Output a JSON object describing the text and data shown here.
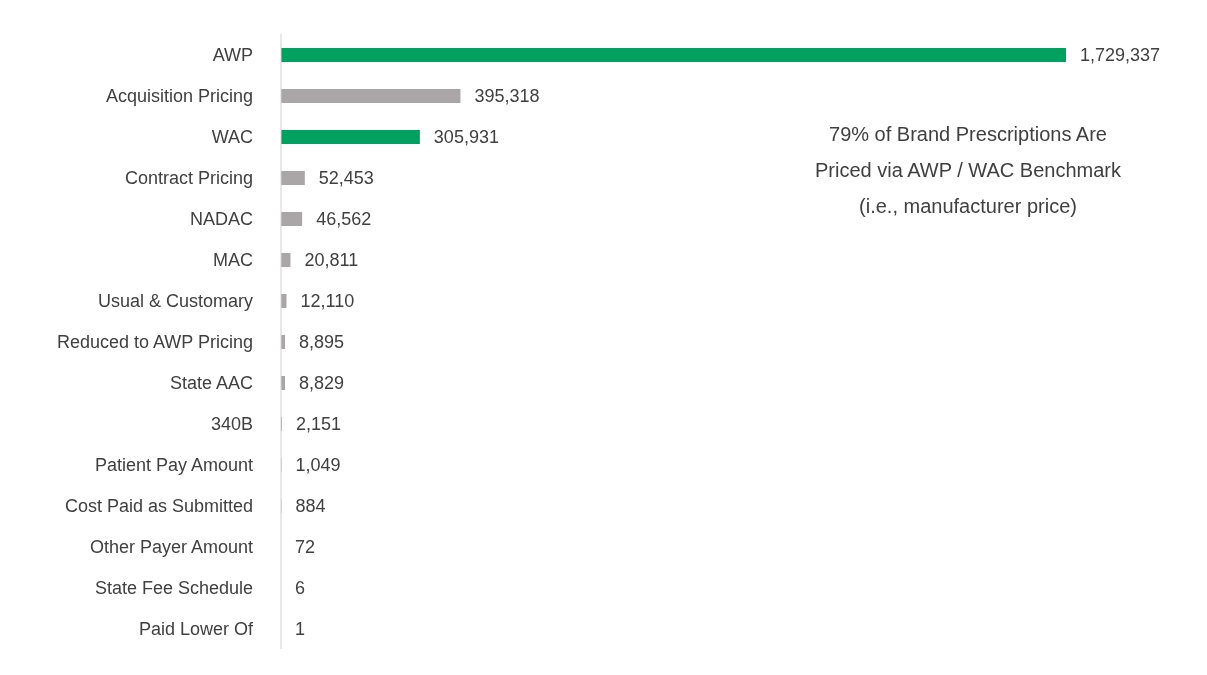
{
  "chart_data": {
    "type": "bar",
    "orientation": "horizontal",
    "categories": [
      "AWP",
      "Acquisition Pricing",
      "WAC",
      "Contract Pricing",
      "NADAC",
      "MAC",
      "Usual & Customary",
      "Reduced to AWP Pricing",
      "State AAC",
      "340B",
      "Patient Pay Amount",
      "Cost Paid as Submitted",
      "Other Payer Amount",
      "State Fee Schedule",
      "Paid Lower Of"
    ],
    "values": [
      1729337,
      395318,
      305931,
      52453,
      46562,
      20811,
      12110,
      8895,
      8829,
      2151,
      1049,
      884,
      72,
      6,
      1
    ],
    "colors": [
      "#00a15f",
      "#aaa6a8",
      "#00a15f",
      "#aaa6a8",
      "#aaa6a8",
      "#aaa6a8",
      "#aaa6a8",
      "#aaa6a8",
      "#aaa6a8",
      "#aaa6a8",
      "#aaa6a8",
      "#aaa6a8",
      "#aaa6a8",
      "#aaa6a8",
      "#aaa6a8"
    ],
    "value_labels": [
      "1,729,337",
      "395,318",
      "305,931",
      "52,453",
      "46,562",
      "20,811",
      "12,110",
      "8,895",
      "8,829",
      "2,151",
      "1,049",
      "884",
      "72",
      "6",
      "1"
    ],
    "annotations": [
      "79% of Brand Prescriptions Are Priced via AWP / WAC Benchmark (i.e., manufacturer price)"
    ]
  }
}
